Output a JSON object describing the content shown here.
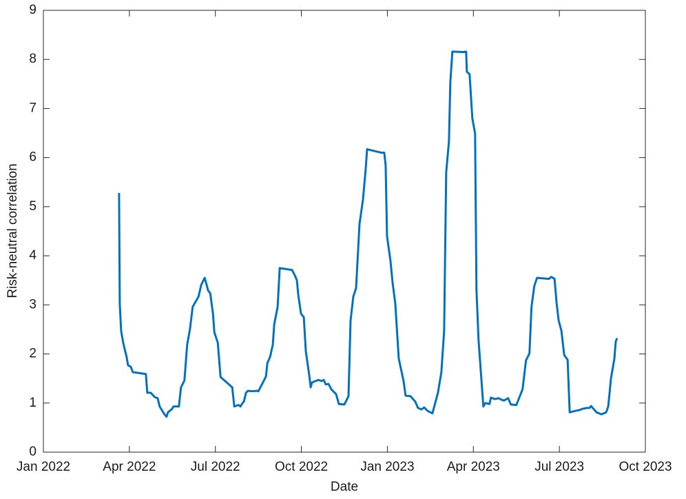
{
  "chart_data": {
    "type": "line",
    "x_label": "Date",
    "y_label": "Risk-neutral correlation",
    "xlim": [
      2022,
      2023.75
    ],
    "xticks": [
      {
        "value": 2022,
        "label": "Jan 2022"
      },
      {
        "value": 2022.25,
        "label": "Apr 2022"
      },
      {
        "value": 2022.5,
        "label": "Jul 2022"
      },
      {
        "value": 2022.75,
        "label": "Oct 2022"
      },
      {
        "value": 2023,
        "label": "Jan 2023"
      },
      {
        "value": 2023.25,
        "label": "Apr 2023"
      },
      {
        "value": 2023.5,
        "label": "Jul 2023"
      },
      {
        "value": 2023.75,
        "label": "Oct 2023"
      }
    ],
    "ylim": [
      0,
      9
    ],
    "yticks": [
      0,
      1,
      2,
      3,
      4,
      5,
      6,
      7,
      8,
      9
    ],
    "grid": false,
    "series": [
      {
        "color": "#0072bd",
        "x": [
          2022.22,
          2022.222,
          2022.226,
          2022.232,
          2022.238,
          2022.242,
          2022.246,
          2022.254,
          2022.26,
          2022.298,
          2022.302,
          2022.312,
          2022.324,
          2022.332,
          2022.338,
          2022.35,
          2022.358,
          2022.362,
          2022.374,
          2022.378,
          2022.394,
          2022.4,
          2022.41,
          2022.418,
          2022.426,
          2022.434,
          2022.451,
          2022.459,
          2022.469,
          2022.479,
          2022.485,
          2022.493,
          2022.497,
          2022.507,
          2022.515,
          2022.549,
          2022.555,
          2022.567,
          2022.573,
          2022.579,
          2022.583,
          2022.589,
          2022.595,
          2022.607,
          2022.621,
          2022.625,
          2022.647,
          2022.651,
          2022.659,
          2022.667,
          2022.671,
          2022.681,
          2022.687,
          2022.723,
          2022.731,
          2022.737,
          2022.741,
          2022.749,
          2022.757,
          2022.763,
          2022.773,
          2022.777,
          2022.781,
          2022.799,
          2022.809,
          2022.815,
          2022.821,
          2022.829,
          2022.837,
          2022.851,
          2022.859,
          2022.875,
          2022.887,
          2022.893,
          2022.901,
          2022.909,
          2022.919,
          2022.929,
          2022.937,
          2022.941,
          2022.983,
          2022.991,
          2022.995,
          2022.999,
          2023.009,
          2023.015,
          2023.023,
          2023.033,
          2023.047,
          2023.053,
          2023.067,
          2023.081,
          2023.089,
          2023.099,
          2023.107,
          2023.117,
          2023.131,
          2023.147,
          2023.157,
          2023.165,
          2023.171,
          2023.179,
          2023.183,
          2023.189,
          2023.219,
          2023.229,
          2023.231,
          2023.239,
          2023.247,
          2023.255,
          2023.259,
          2023.265,
          2023.279,
          2023.285,
          2023.297,
          2023.301,
          2023.313,
          2023.323,
          2023.331,
          2023.339,
          2023.351,
          2023.359,
          2023.375,
          2023.393,
          2023.403,
          2023.413,
          2023.419,
          2023.427,
          2023.435,
          2023.47,
          2023.476,
          2023.486,
          2023.492,
          2023.498,
          2023.506,
          2023.514,
          2023.524,
          2023.53,
          2023.546,
          2023.56,
          2023.566,
          2023.58,
          2023.588,
          2023.592,
          2023.602,
          2023.608,
          2023.622,
          2023.636,
          2023.642,
          2023.646,
          2023.65,
          2023.66,
          2023.664,
          2023.668
        ],
        "values": [
          5.28,
          3.03,
          2.47,
          2.23,
          2.05,
          1.94,
          1.77,
          1.74,
          1.63,
          1.59,
          1.21,
          1.21,
          1.12,
          1.1,
          0.93,
          0.79,
          0.72,
          0.81,
          0.88,
          0.93,
          0.93,
          1.32,
          1.46,
          2.19,
          2.5,
          2.96,
          3.17,
          3.41,
          3.55,
          3.29,
          3.24,
          2.82,
          2.44,
          2.23,
          1.53,
          1.32,
          0.93,
          0.96,
          0.93,
          1.0,
          1.03,
          1.21,
          1.25,
          1.24,
          1.25,
          1.24,
          1.54,
          1.81,
          1.94,
          2.19,
          2.6,
          2.96,
          3.75,
          3.71,
          3.6,
          3.5,
          3.2,
          2.82,
          2.75,
          2.05,
          1.56,
          1.32,
          1.42,
          1.47,
          1.45,
          1.47,
          1.38,
          1.39,
          1.28,
          1.18,
          0.98,
          0.97,
          1.14,
          2.68,
          3.17,
          3.34,
          4.65,
          5.14,
          5.77,
          6.17,
          6.1,
          6.1,
          5.84,
          4.4,
          3.9,
          3.46,
          3.03,
          1.91,
          1.45,
          1.15,
          1.14,
          1.03,
          0.9,
          0.87,
          0.91,
          0.84,
          0.79,
          1.21,
          1.63,
          2.47,
          5.7,
          6.33,
          7.53,
          8.16,
          8.15,
          8.16,
          7.75,
          7.7,
          6.8,
          6.49,
          3.31,
          2.29,
          0.93,
          1.0,
          0.98,
          1.11,
          1.08,
          1.1,
          1.07,
          1.05,
          1.1,
          0.97,
          0.96,
          1.28,
          1.87,
          2.01,
          2.96,
          3.38,
          3.55,
          3.53,
          3.57,
          3.53,
          3.03,
          2.68,
          2.47,
          1.98,
          1.88,
          0.81,
          0.84,
          0.86,
          0.88,
          0.9,
          0.9,
          0.94,
          0.86,
          0.81,
          0.77,
          0.81,
          0.93,
          1.21,
          1.5,
          1.91,
          2.26,
          2.32
        ]
      }
    ]
  }
}
